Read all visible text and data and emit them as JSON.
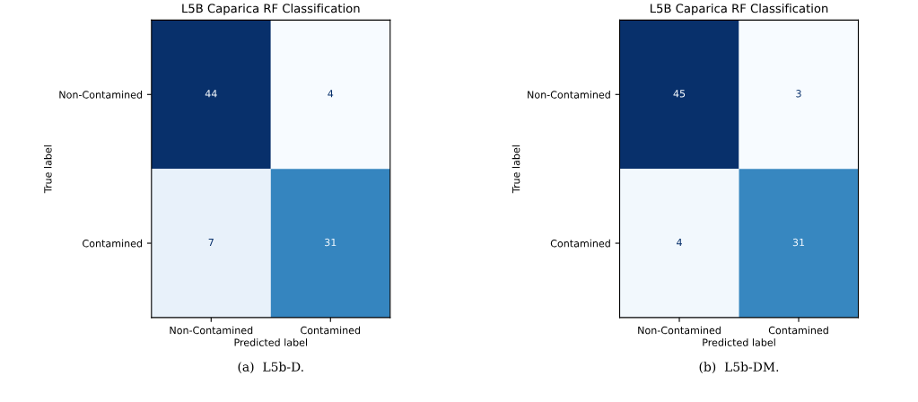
{
  "chart_data": [
    {
      "type": "heatmap",
      "title": "L5B Caparica RF Classification",
      "xlabel": "Predicted label",
      "ylabel": "True label",
      "categories": [
        "Non-Contamined",
        "Contamined"
      ],
      "y_categories": [
        "Non-Contamined",
        "Contamined"
      ],
      "cells": [
        [
          44,
          4
        ],
        [
          7,
          31
        ]
      ],
      "data_labels": true,
      "annotations": [
        "(a)  L5b-D."
      ]
    },
    {
      "type": "heatmap",
      "title": "L5B Caparica RF Classification",
      "xlabel": "Predicted label",
      "ylabel": "True label",
      "categories": [
        "Non-Contamined",
        "Contamined"
      ],
      "y_categories": [
        "Non-Contamined",
        "Contamined"
      ],
      "cells": [
        [
          45,
          3
        ],
        [
          4,
          31
        ]
      ],
      "data_labels": true,
      "annotations": [
        "(b)  L5b-DM."
      ]
    }
  ]
}
